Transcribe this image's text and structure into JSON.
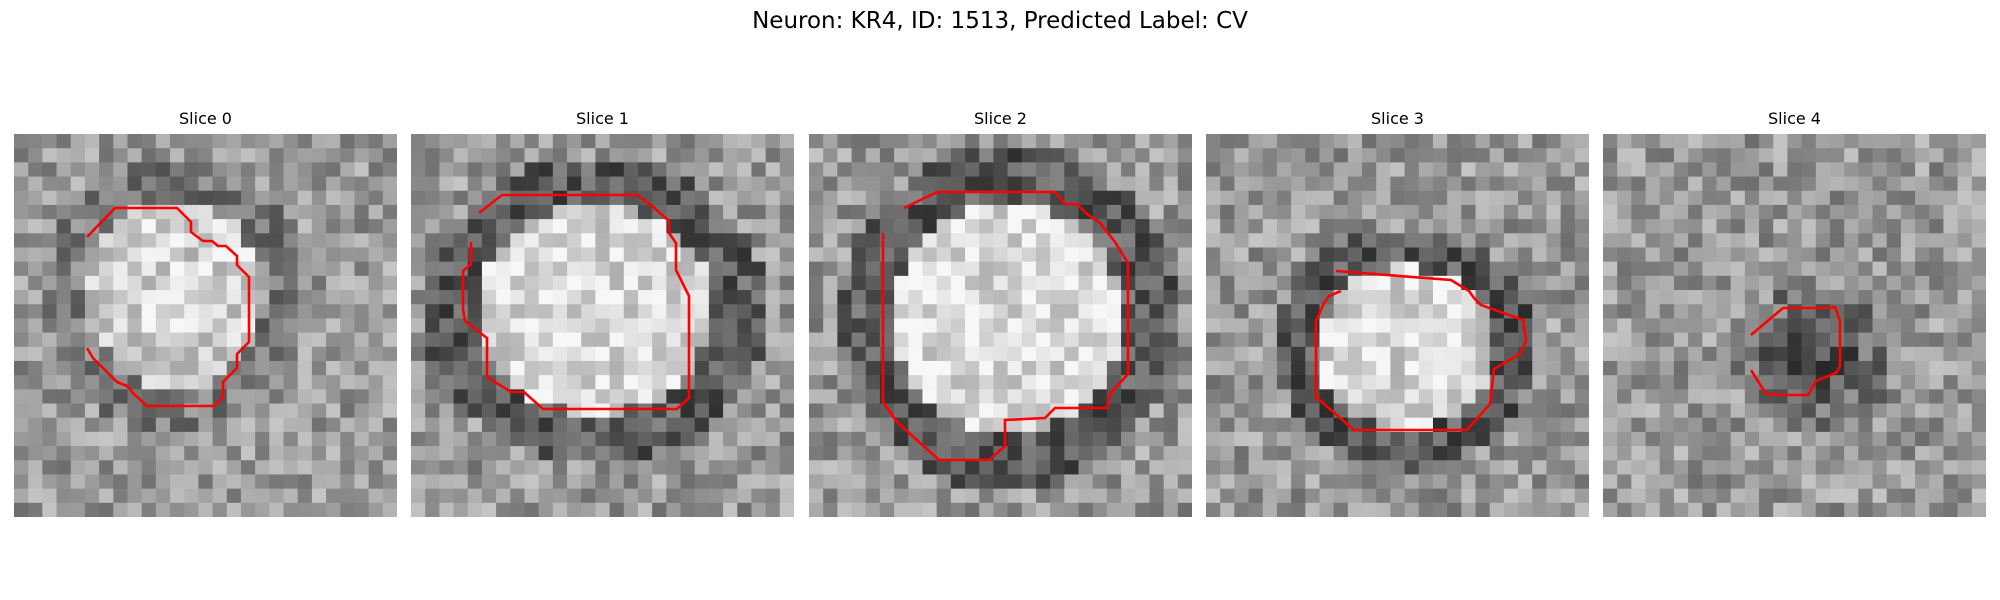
{
  "figure": {
    "title": "Neuron: KR4, ID: 1513, Predicted Label: CV"
  },
  "slices": [
    {
      "title": "Slice 0",
      "center": [
        0.42,
        0.42
      ],
      "rx": 0.27,
      "ry": 0.29,
      "inner": 0.82,
      "ring": 0.48,
      "seed": 11
    },
    {
      "title": "Slice 1",
      "center": [
        0.48,
        0.46
      ],
      "rx": 0.36,
      "ry": 0.32,
      "inner": 0.86,
      "ring": 0.36,
      "seed": 23
    },
    {
      "title": "Slice 2",
      "center": [
        0.52,
        0.48
      ],
      "rx": 0.35,
      "ry": 0.36,
      "inner": 0.86,
      "ring": 0.36,
      "seed": 37
    },
    {
      "title": "Slice 3",
      "center": [
        0.52,
        0.56
      ],
      "rx": 0.27,
      "ry": 0.25,
      "inner": 0.84,
      "ring": 0.34,
      "seed": 53
    },
    {
      "title": "Slice 4",
      "center": [
        0.54,
        0.59
      ],
      "rx": 0.17,
      "ry": 0.15,
      "inner": 0.32,
      "ring": 0.45,
      "seed": 71
    }
  ],
  "style": {
    "contour_color": "#ff0000"
  }
}
